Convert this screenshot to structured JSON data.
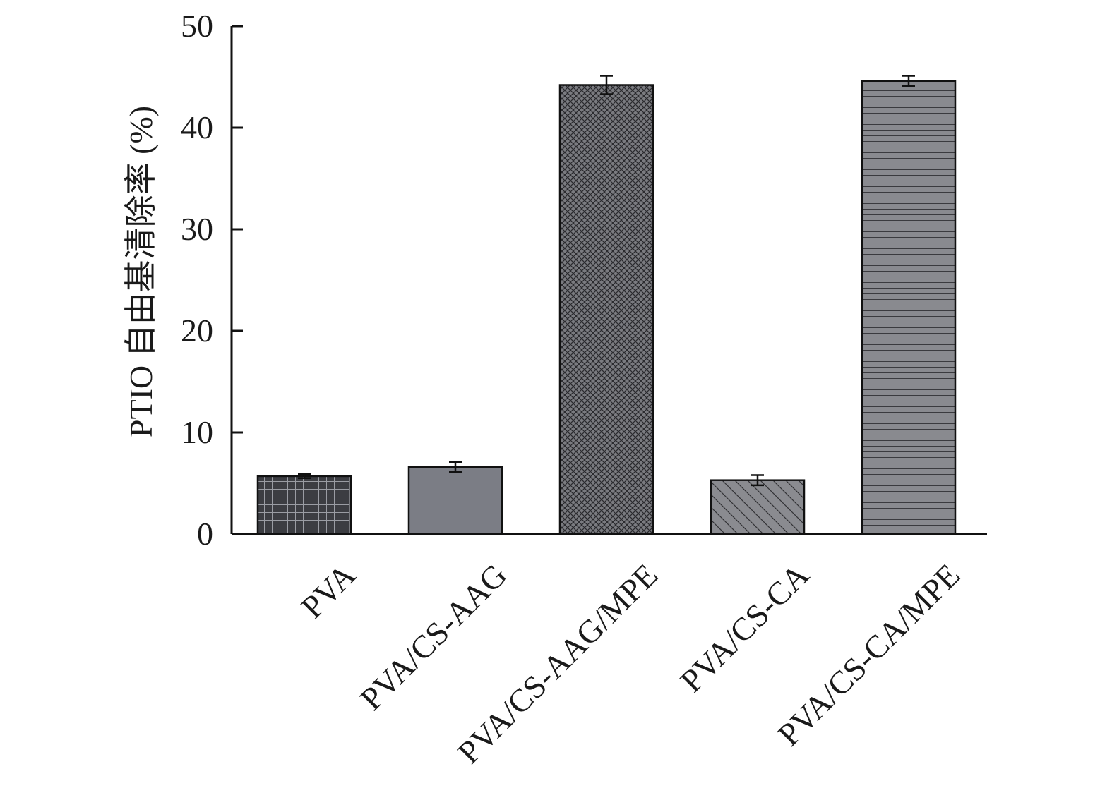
{
  "chart_data": {
    "type": "bar",
    "title": "",
    "xlabel": "",
    "ylabel": "PTIO 自由基清除率 (%)",
    "ylim": [
      0,
      50
    ],
    "yticks": [
      0,
      10,
      20,
      30,
      40,
      50
    ],
    "ytick_labels": [
      "0",
      "10",
      "20",
      "30",
      "40",
      "50"
    ],
    "categories": [
      "PVA",
      "PVA/CS-AAG",
      "PVA/CS-AAG/MPE",
      "PVA/CS-CA",
      "PVA/CS-CA/MPE"
    ],
    "values": [
      5.7,
      6.6,
      44.2,
      5.3,
      44.6
    ],
    "errors": [
      0.2,
      0.5,
      0.9,
      0.5,
      0.5
    ],
    "bar_fills": [
      "grid-dark",
      "solid-gray",
      "crosshatch-dense",
      "diagonal-hatch",
      "horizontal-lines"
    ],
    "colors": {
      "bar_dark": "#3c3d42",
      "bar_gray": "#7b7d85",
      "bar_mid": "#8a8b90",
      "axis": "#111111"
    },
    "grid": false,
    "legend": "none"
  }
}
